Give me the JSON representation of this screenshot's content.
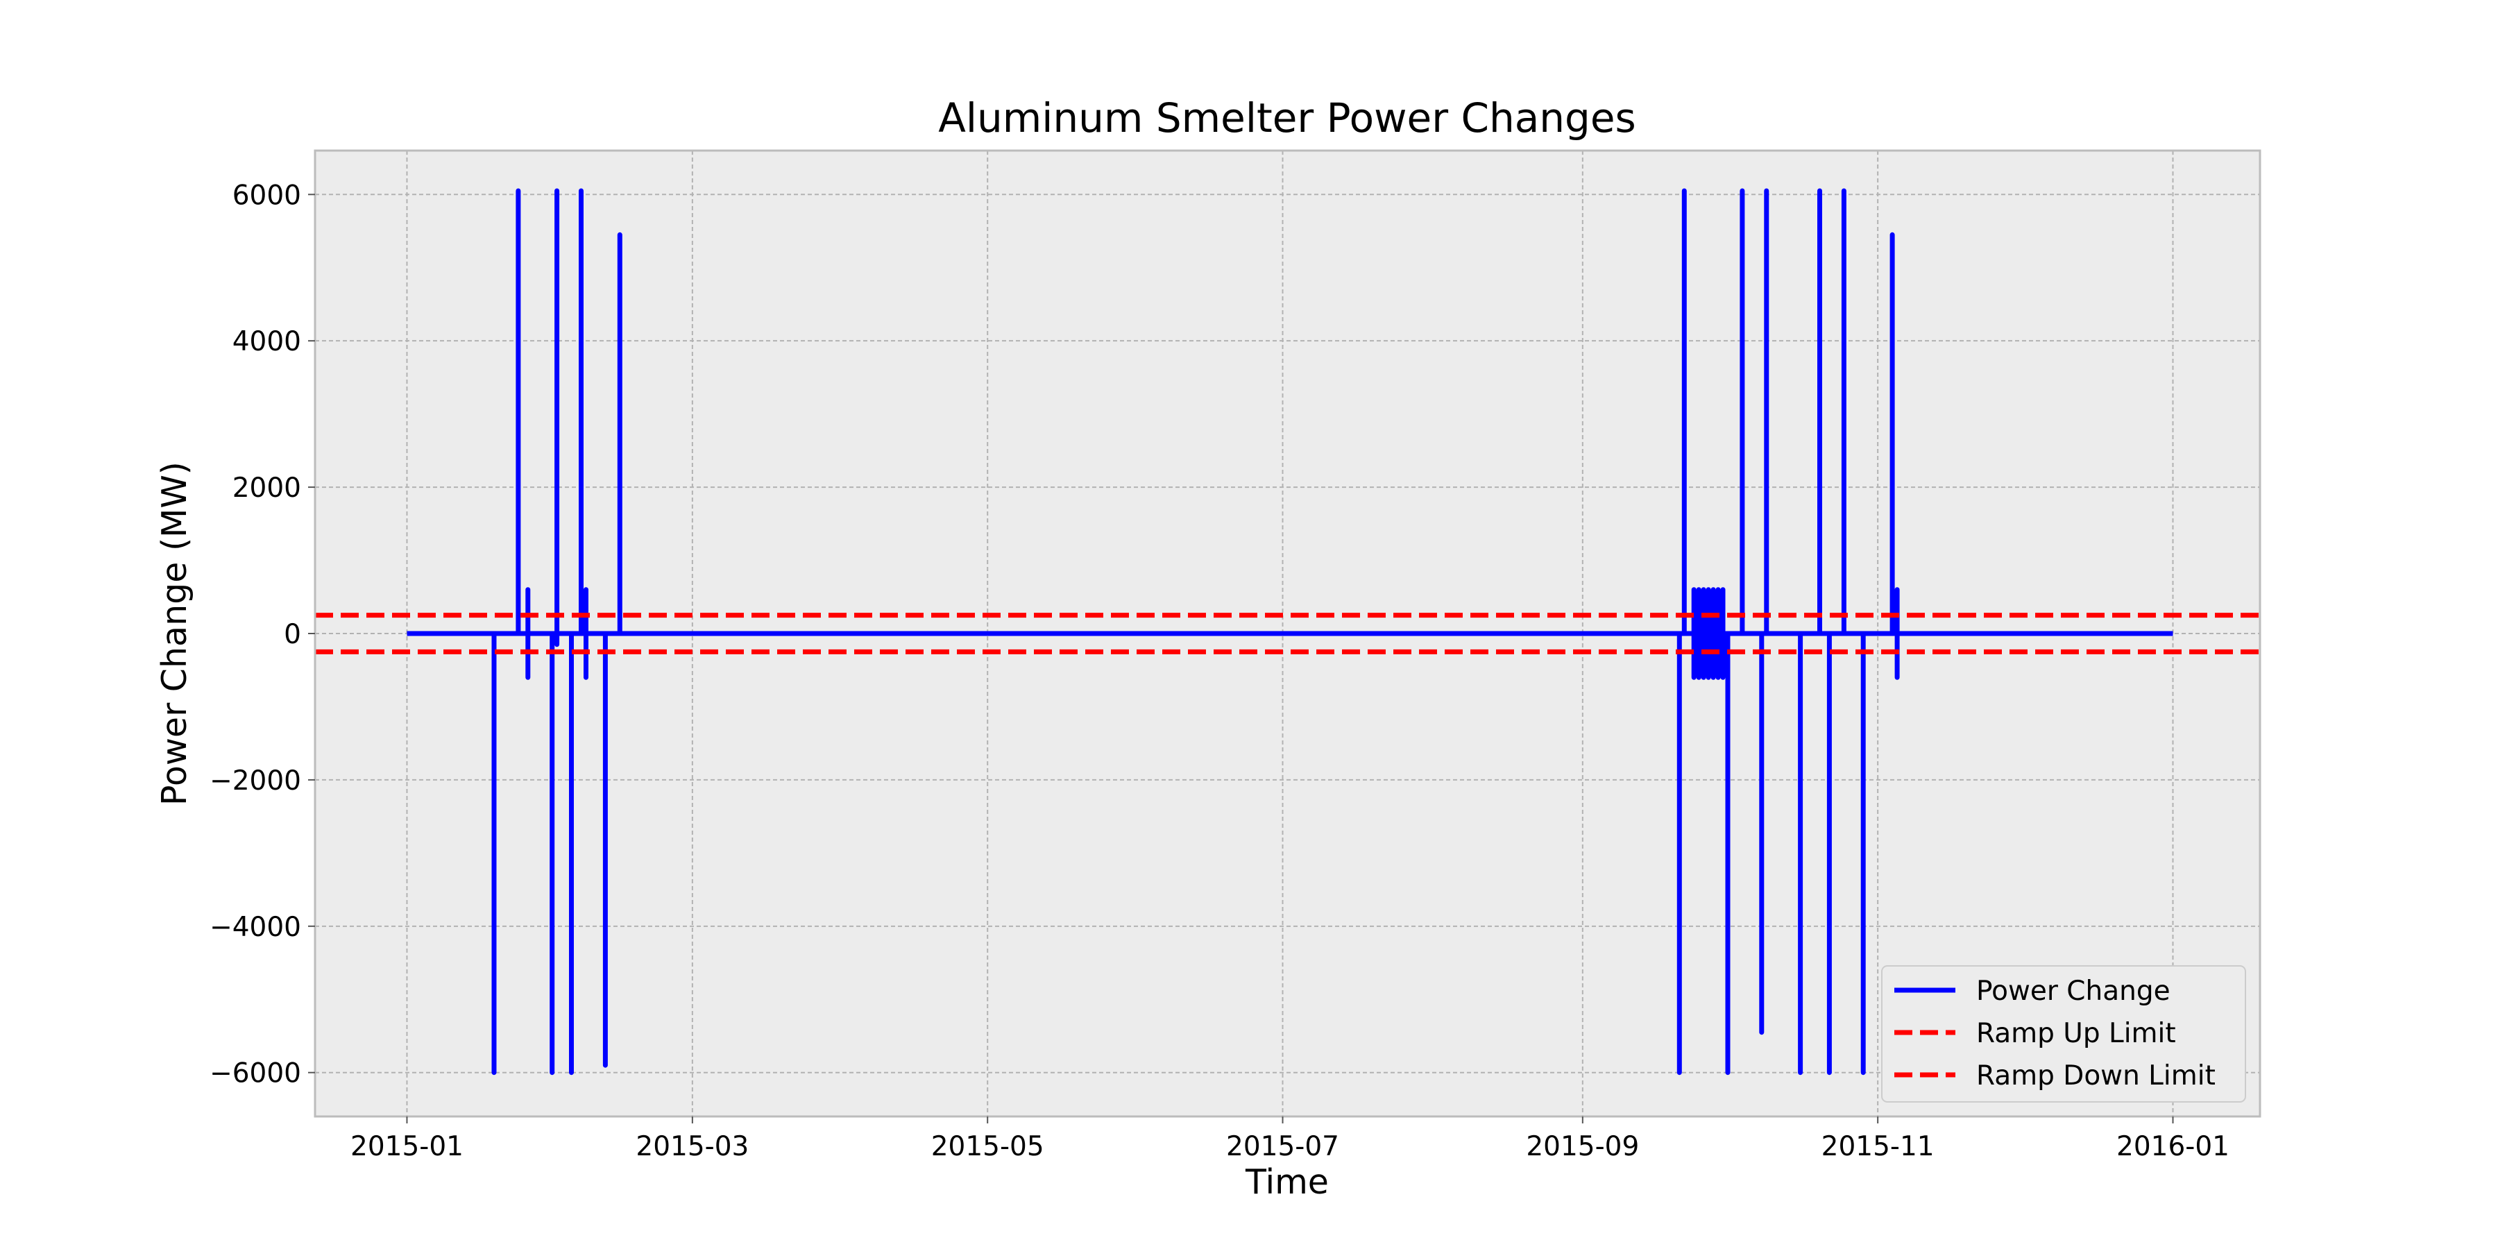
{
  "chart_data": {
    "type": "line",
    "title": "Aluminum Smelter Power Changes",
    "xlabel": "Time",
    "ylabel": "Power Change (MW)",
    "x_type": "date",
    "xlim": [
      "2014-12-13",
      "2016-01-19"
    ],
    "ylim": [
      -6600,
      6600
    ],
    "x_ticks": [
      "2015-01",
      "2015-03",
      "2015-05",
      "2015-07",
      "2015-09",
      "2015-11",
      "2016-01"
    ],
    "y_ticks": [
      6000,
      4000,
      2000,
      0,
      -2000,
      -4000,
      -6000
    ],
    "y_tick_labels": [
      "6000",
      "4000",
      "2000",
      "0",
      "−2000",
      "−4000",
      "−6000"
    ],
    "grid": true,
    "legend_position": "bottom-right",
    "series": [
      {
        "name": "Power Change",
        "color": "#0000ff",
        "style": "solid",
        "points": [
          [
            "2015-01-01",
            0
          ],
          [
            "2015-01-19",
            0
          ],
          [
            "2015-01-19",
            -6000
          ],
          [
            "2015-01-19",
            0
          ],
          [
            "2015-01-24",
            0
          ],
          [
            "2015-01-24",
            6050
          ],
          [
            "2015-01-24",
            0
          ],
          [
            "2015-01-26",
            0
          ],
          [
            "2015-01-26",
            -600
          ],
          [
            "2015-01-26",
            600
          ],
          [
            "2015-01-26",
            0
          ],
          [
            "2015-01-31",
            0
          ],
          [
            "2015-01-31",
            -6000
          ],
          [
            "2015-01-31",
            0
          ],
          [
            "2015-02-01",
            0
          ],
          [
            "2015-02-01",
            6050
          ],
          [
            "2015-02-01",
            -150
          ],
          [
            "2015-02-01",
            0
          ],
          [
            "2015-02-04",
            0
          ],
          [
            "2015-02-04",
            -6000
          ],
          [
            "2015-02-04",
            0
          ],
          [
            "2015-02-06",
            0
          ],
          [
            "2015-02-06",
            6050
          ],
          [
            "2015-02-06",
            0
          ],
          [
            "2015-02-07",
            0
          ],
          [
            "2015-02-07",
            -600
          ],
          [
            "2015-02-07",
            600
          ],
          [
            "2015-02-07",
            0
          ],
          [
            "2015-02-11",
            0
          ],
          [
            "2015-02-11",
            -5900
          ],
          [
            "2015-02-11",
            0
          ],
          [
            "2015-02-14",
            0
          ],
          [
            "2015-02-14",
            5450
          ],
          [
            "2015-02-14",
            0
          ],
          [
            "2015-09-21",
            0
          ],
          [
            "2015-09-21",
            -6000
          ],
          [
            "2015-09-21",
            0
          ],
          [
            "2015-09-22",
            0
          ],
          [
            "2015-09-22",
            6050
          ],
          [
            "2015-09-22",
            0
          ],
          [
            "2015-09-24",
            0
          ],
          [
            "2015-09-24",
            -600
          ],
          [
            "2015-09-24",
            600
          ],
          [
            "2015-09-25",
            -600
          ],
          [
            "2015-09-25",
            600
          ],
          [
            "2015-09-26",
            -600
          ],
          [
            "2015-09-26",
            600
          ],
          [
            "2015-09-27",
            -600
          ],
          [
            "2015-09-27",
            600
          ],
          [
            "2015-09-28",
            -600
          ],
          [
            "2015-09-28",
            600
          ],
          [
            "2015-09-29",
            -600
          ],
          [
            "2015-09-29",
            600
          ],
          [
            "2015-09-30",
            -600
          ],
          [
            "2015-09-30",
            600
          ],
          [
            "2015-09-30",
            0
          ],
          [
            "2015-10-01",
            0
          ],
          [
            "2015-10-01",
            -6000
          ],
          [
            "2015-10-01",
            0
          ],
          [
            "2015-10-04",
            0
          ],
          [
            "2015-10-04",
            6050
          ],
          [
            "2015-10-04",
            0
          ],
          [
            "2015-10-08",
            0
          ],
          [
            "2015-10-08",
            -5450
          ],
          [
            "2015-10-08",
            0
          ],
          [
            "2015-10-09",
            0
          ],
          [
            "2015-10-09",
            6050
          ],
          [
            "2015-10-09",
            0
          ],
          [
            "2015-10-16",
            0
          ],
          [
            "2015-10-16",
            -6000
          ],
          [
            "2015-10-16",
            0
          ],
          [
            "2015-10-20",
            0
          ],
          [
            "2015-10-20",
            6050
          ],
          [
            "2015-10-20",
            0
          ],
          [
            "2015-10-22",
            0
          ],
          [
            "2015-10-22",
            -6000
          ],
          [
            "2015-10-22",
            0
          ],
          [
            "2015-10-25",
            0
          ],
          [
            "2015-10-25",
            6050
          ],
          [
            "2015-10-25",
            0
          ],
          [
            "2015-10-29",
            0
          ],
          [
            "2015-10-29",
            -6000
          ],
          [
            "2015-10-29",
            0
          ],
          [
            "2015-11-04",
            0
          ],
          [
            "2015-11-04",
            5450
          ],
          [
            "2015-11-04",
            0
          ],
          [
            "2015-11-05",
            0
          ],
          [
            "2015-11-05",
            -600
          ],
          [
            "2015-11-05",
            600
          ],
          [
            "2015-11-05",
            0
          ],
          [
            "2016-01-01",
            0
          ]
        ]
      },
      {
        "name": "Ramp Up Limit",
        "color": "#ff0000",
        "style": "dashed",
        "y": 250
      },
      {
        "name": "Ramp Down Limit",
        "color": "#ff0000",
        "style": "dashed",
        "y": -250
      }
    ]
  }
}
